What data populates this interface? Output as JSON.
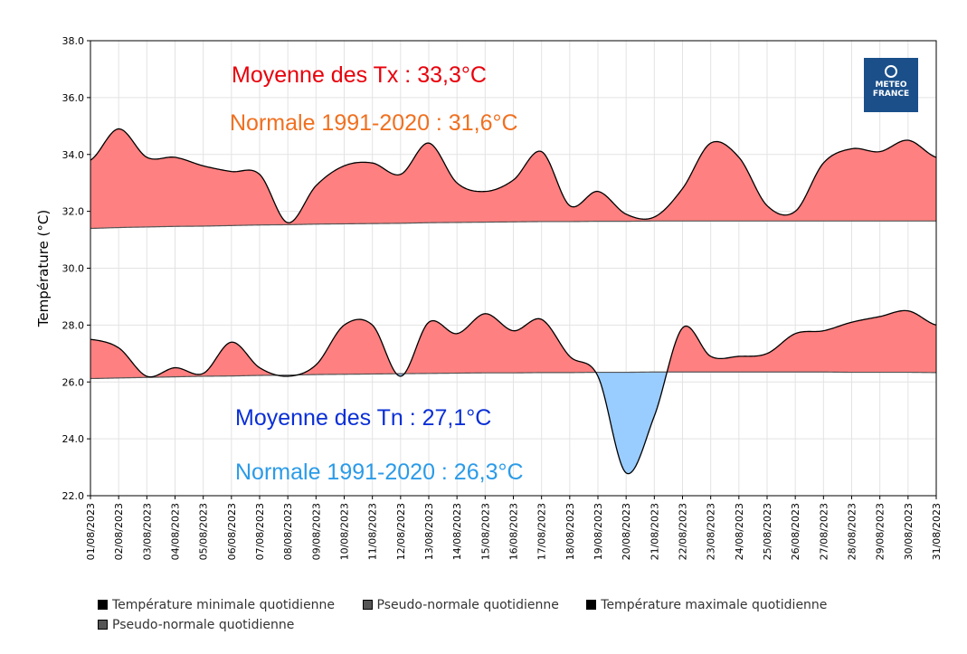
{
  "chart_data": {
    "type": "area",
    "ylabel": "Température (°C)",
    "ylim": [
      22,
      38
    ],
    "yticks": [
      "22.0",
      "24.0",
      "26.0",
      "28.0",
      "30.0",
      "32.0",
      "34.0",
      "36.0",
      "38.0"
    ],
    "grid": true,
    "categories": [
      "01/08/2023",
      "02/08/2023",
      "03/08/2023",
      "04/08/2023",
      "05/08/2023",
      "06/08/2023",
      "07/08/2023",
      "08/08/2023",
      "09/08/2023",
      "10/08/2023",
      "11/08/2023",
      "12/08/2023",
      "13/08/2023",
      "14/08/2023",
      "15/08/2023",
      "16/08/2023",
      "17/08/2023",
      "18/08/2023",
      "19/08/2023",
      "20/08/2023",
      "21/08/2023",
      "22/08/2023",
      "23/08/2023",
      "24/08/2023",
      "25/08/2023",
      "26/08/2023",
      "27/08/2023",
      "28/08/2023",
      "29/08/2023",
      "30/08/2023",
      "31/08/2023"
    ],
    "series": [
      {
        "name": "Température maximale quotidienne",
        "color": "#000000",
        "values": [
          33.8,
          34.9,
          33.9,
          33.9,
          33.6,
          33.4,
          33.3,
          31.6,
          32.9,
          33.6,
          33.7,
          33.3,
          34.4,
          33.0,
          32.7,
          33.1,
          34.1,
          32.2,
          32.7,
          31.9,
          31.8,
          32.8,
          34.4,
          33.9,
          32.2,
          32.0,
          33.7,
          34.2,
          34.1,
          34.5,
          33.9
        ]
      },
      {
        "name": "Pseudo-normale quotidienne",
        "color": "#555555",
        "values": [
          31.4,
          31.43,
          31.45,
          31.47,
          31.48,
          31.5,
          31.52,
          31.53,
          31.55,
          31.56,
          31.57,
          31.58,
          31.6,
          31.61,
          31.62,
          31.63,
          31.64,
          31.64,
          31.65,
          31.65,
          31.66,
          31.66,
          31.66,
          31.66,
          31.66,
          31.66,
          31.66,
          31.66,
          31.66,
          31.66,
          31.66
        ]
      },
      {
        "name": "Température minimale quotidienne",
        "color": "#000000",
        "values": [
          27.5,
          27.2,
          26.2,
          26.5,
          26.3,
          27.4,
          26.5,
          26.2,
          26.6,
          28.0,
          28.0,
          26.2,
          28.1,
          27.7,
          28.4,
          27.8,
          28.2,
          26.9,
          26.2,
          22.8,
          24.8,
          27.9,
          26.9,
          26.9,
          27.0,
          27.7,
          27.8,
          28.1,
          28.3,
          28.5,
          28.0
        ]
      },
      {
        "name": "Pseudo-normale quotidienne",
        "color": "#555555",
        "values": [
          26.12,
          26.14,
          26.16,
          26.18,
          26.2,
          26.21,
          26.23,
          26.24,
          26.26,
          26.27,
          26.28,
          26.29,
          26.3,
          26.31,
          26.32,
          26.32,
          26.33,
          26.33,
          26.34,
          26.34,
          26.35,
          26.35,
          26.35,
          26.35,
          26.35,
          26.35,
          26.35,
          26.34,
          26.34,
          26.34,
          26.33
        ]
      }
    ],
    "above_normal_color": "#ff8080",
    "below_normal_color": "#99ccff",
    "annotations": [
      {
        "text": "Moyenne des Tx : 33,3°C",
        "color": "#e8000b"
      },
      {
        "text": "Normale 1991-2020 : 31,6°C",
        "color": "#f07020"
      },
      {
        "text": "Moyenne des Tn : 27,1°C",
        "color": "#0a2fd6"
      },
      {
        "text": "Normale 1991-2020 : 26,3°C",
        "color": "#2b9be8"
      }
    ],
    "legend": [
      {
        "label": "Température minimale quotidienne",
        "color": "#000000"
      },
      {
        "label": "Pseudo-normale quotidienne",
        "color": "#555555"
      },
      {
        "label": "Température maximale quotidienne",
        "color": "#000000"
      },
      {
        "label": "Pseudo-normale quotidienne",
        "color": "#555555"
      }
    ],
    "logo": {
      "line1": "METEO",
      "line2": "FRANCE",
      "color": "#1a4f8a"
    }
  }
}
